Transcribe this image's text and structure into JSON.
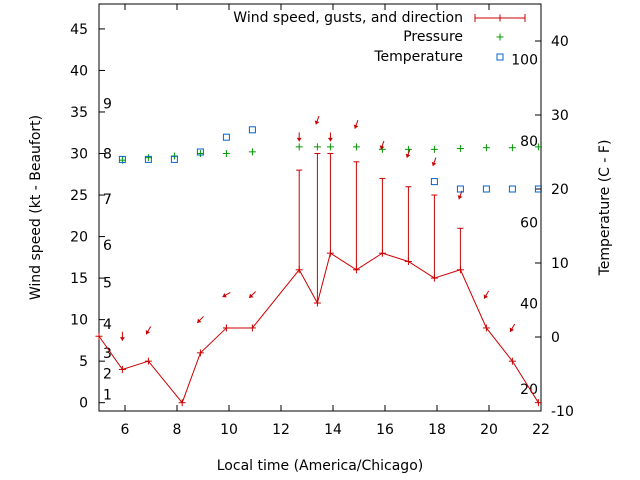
{
  "chart_data": {
    "type": "line",
    "xlabel": "Local time (America/Chicago)",
    "ylabel": "Wind speed (kt - Beaufort)",
    "y2label": "Temperature (C - F)",
    "xlim": [
      5,
      22
    ],
    "ylim": [
      -1,
      48
    ],
    "y2lim": [
      -10,
      45
    ],
    "x_ticks": [
      6,
      8,
      10,
      12,
      14,
      16,
      18,
      20,
      22
    ],
    "y_ticks": [
      0,
      5,
      10,
      15,
      20,
      25,
      30,
      35,
      40,
      45
    ],
    "y2_ticks": [
      -10,
      0,
      10,
      20,
      30,
      40
    ],
    "beaufort_labels": [
      {
        "text": "1",
        "y": 1
      },
      {
        "text": "2",
        "y": 3.5
      },
      {
        "text": "3",
        "y": 6
      },
      {
        "text": "4",
        "y": 9.5
      },
      {
        "text": "5",
        "y": 14.5
      },
      {
        "text": "6",
        "y": 19
      },
      {
        "text": "7",
        "y": 24.5
      },
      {
        "text": "8",
        "y": 30
      },
      {
        "text": "9",
        "y": 36
      }
    ],
    "fahrenheit_labels": [
      {
        "text": "20",
        "y2": -7
      },
      {
        "text": "40",
        "y2": 4.5
      },
      {
        "text": "60",
        "y2": 15.5
      },
      {
        "text": "80",
        "y2": 26.5
      },
      {
        "text": "100",
        "y2": 37.5
      }
    ],
    "legend": {
      "placement": "top-right",
      "entries": [
        "Wind speed, gusts, and direction",
        "Pressure",
        "Temperature"
      ]
    },
    "series": [
      {
        "name": "Wind speed, gusts, and direction",
        "color": "#cc0000",
        "points": [
          {
            "x": 5,
            "y": 8,
            "gust": 8
          },
          {
            "x": 5.9,
            "y": 4,
            "gust": 4
          },
          {
            "x": 6.9,
            "y": 5,
            "gust": 5
          },
          {
            "x": 8.2,
            "y": 0,
            "gust": 0
          },
          {
            "x": 8.9,
            "y": 6,
            "gust": 6
          },
          {
            "x": 9.9,
            "y": 9,
            "gust": 9
          },
          {
            "x": 10.9,
            "y": 9,
            "gust": 9
          },
          {
            "x": 12.7,
            "y": 16,
            "gust": 28
          },
          {
            "x": 13.4,
            "y": 12,
            "gust": 30
          },
          {
            "x": 13.9,
            "y": 18,
            "gust": 30
          },
          {
            "x": 14.9,
            "y": 16,
            "gust": 29
          },
          {
            "x": 15.9,
            "y": 18,
            "gust": 27
          },
          {
            "x": 16.9,
            "y": 17,
            "gust": 26
          },
          {
            "x": 17.9,
            "y": 15,
            "gust": 25
          },
          {
            "x": 18.9,
            "y": 16,
            "gust": 21
          },
          {
            "x": 19.9,
            "y": 9,
            "gust": 9
          },
          {
            "x": 20.9,
            "y": 5,
            "gust": 5
          },
          {
            "x": 21.9,
            "y": 0,
            "gust": 0
          }
        ]
      },
      {
        "name": "Pressure",
        "color": "#009900",
        "marker": "plus",
        "points": [
          {
            "x": 5.9,
            "y": 29.2
          },
          {
            "x": 6.9,
            "y": 29.5
          },
          {
            "x": 7.9,
            "y": 29.7
          },
          {
            "x": 8.9,
            "y": 30
          },
          {
            "x": 9.9,
            "y": 30
          },
          {
            "x": 10.9,
            "y": 30.2
          },
          {
            "x": 12.7,
            "y": 30.8
          },
          {
            "x": 13.4,
            "y": 30.8
          },
          {
            "x": 13.9,
            "y": 30.8
          },
          {
            "x": 14.9,
            "y": 30.8
          },
          {
            "x": 15.9,
            "y": 30.5
          },
          {
            "x": 16.9,
            "y": 30.5
          },
          {
            "x": 17.9,
            "y": 30.5
          },
          {
            "x": 18.9,
            "y": 30.6
          },
          {
            "x": 19.9,
            "y": 30.7
          },
          {
            "x": 20.9,
            "y": 30.7
          },
          {
            "x": 21.9,
            "y": 30.8
          }
        ]
      },
      {
        "name": "Temperature",
        "color": "#0066cc",
        "marker": "square",
        "axis": "y2",
        "points": [
          {
            "x": 5.9,
            "y2": 24
          },
          {
            "x": 6.9,
            "y2": 24
          },
          {
            "x": 7.9,
            "y2": 24
          },
          {
            "x": 8.9,
            "y2": 25
          },
          {
            "x": 9.9,
            "y2": 27
          },
          {
            "x": 10.9,
            "y2": 28
          },
          {
            "x": 17.9,
            "y2": 21
          },
          {
            "x": 18.9,
            "y2": 20
          },
          {
            "x": 19.9,
            "y2": 20
          },
          {
            "x": 20.9,
            "y2": 20
          },
          {
            "x": 21.9,
            "y2": 20
          }
        ]
      },
      {
        "name": "Wind direction arrows",
        "color": "#cc0000",
        "points": [
          {
            "x": 5.9,
            "y": 8,
            "dir": 0
          },
          {
            "x": 6.9,
            "y": 8.7,
            "dir": 30
          },
          {
            "x": 8.9,
            "y": 10,
            "dir": 45
          },
          {
            "x": 9.9,
            "y": 13,
            "dir": 60
          },
          {
            "x": 10.9,
            "y": 13,
            "dir": 45
          },
          {
            "x": 12.7,
            "y": 32,
            "dir": 0
          },
          {
            "x": 13.4,
            "y": 34,
            "dir": 20
          },
          {
            "x": 13.9,
            "y": 32,
            "dir": 0
          },
          {
            "x": 14.9,
            "y": 33.5,
            "dir": 20
          },
          {
            "x": 15.9,
            "y": 31,
            "dir": 20
          },
          {
            "x": 16.9,
            "y": 30,
            "dir": 20
          },
          {
            "x": 17.9,
            "y": 29,
            "dir": 20
          },
          {
            "x": 18.9,
            "y": 25,
            "dir": 20
          },
          {
            "x": 19.9,
            "y": 13,
            "dir": 30
          },
          {
            "x": 20.9,
            "y": 9,
            "dir": 30
          }
        ]
      }
    ]
  }
}
